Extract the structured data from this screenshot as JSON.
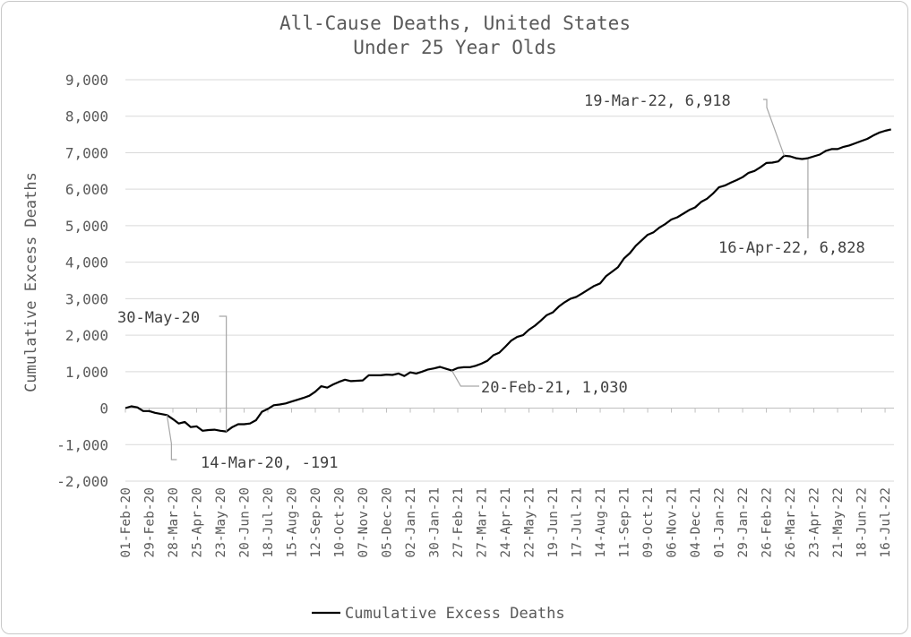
{
  "chart_data": {
    "type": "line",
    "title": "All-Cause Deaths, United States",
    "subtitle": "Under 25 Year Olds",
    "ylabel": "Cumulative Excess Deaths",
    "xlabel": "",
    "ylim": [
      -2000,
      9000
    ],
    "yticks": [
      9000,
      8000,
      7000,
      6000,
      5000,
      4000,
      3000,
      2000,
      1000,
      0,
      -1000,
      -2000
    ],
    "ytick_labels": [
      "9,000",
      "8,000",
      "7,000",
      "6,000",
      "5,000",
      "4,000",
      "3,000",
      "2,000",
      "1,000",
      "0",
      "-1,000",
      "-2,000"
    ],
    "xtick_labels": [
      "01-Feb-20",
      "29-Feb-20",
      "28-Mar-20",
      "25-Apr-20",
      "23-May-20",
      "20-Jun-20",
      "18-Jul-20",
      "15-Aug-20",
      "12-Sep-20",
      "10-Oct-20",
      "07-Nov-20",
      "05-Dec-20",
      "02-Jan-21",
      "30-Jan-21",
      "27-Feb-21",
      "27-Mar-21",
      "24-Apr-21",
      "22-May-21",
      "19-Jun-21",
      "17-Jul-21",
      "14-Aug-21",
      "11-Sep-21",
      "09-Oct-21",
      "06-Nov-21",
      "04-Dec-21",
      "01-Jan-22",
      "29-Jan-22",
      "26-Feb-22",
      "26-Mar-22",
      "23-Apr-22",
      "21-May-22",
      "18-Jun-22",
      "16-Jul-22"
    ],
    "grid": true,
    "legend_position": "bottom",
    "series": [
      {
        "name": "Cumulative Excess Deaths",
        "color": "#000000",
        "values": [
          0,
          50,
          20,
          -80,
          -80,
          -130,
          -160,
          -191,
          -300,
          -420,
          -380,
          -520,
          -500,
          -620,
          -600,
          -590,
          -620,
          -640,
          -520,
          -440,
          -440,
          -420,
          -330,
          -100,
          -20,
          80,
          100,
          130,
          180,
          230,
          280,
          340,
          450,
          600,
          560,
          650,
          720,
          780,
          740,
          750,
          760,
          900,
          900,
          900,
          920,
          910,
          950,
          880,
          980,
          950,
          1000,
          1060,
          1090,
          1130,
          1080,
          1030,
          1100,
          1120,
          1120,
          1160,
          1220,
          1300,
          1450,
          1520,
          1680,
          1850,
          1950,
          2000,
          2150,
          2260,
          2400,
          2550,
          2620,
          2780,
          2900,
          3000,
          3050,
          3150,
          3250,
          3350,
          3420,
          3620,
          3740,
          3860,
          4100,
          4250,
          4450,
          4600,
          4750,
          4820,
          4950,
          5050,
          5170,
          5230,
          5330,
          5430,
          5500,
          5650,
          5740,
          5880,
          6050,
          6100,
          6180,
          6250,
          6330,
          6450,
          6500,
          6600,
          6720,
          6730,
          6760,
          6918,
          6900,
          6850,
          6828,
          6850,
          6900,
          6950,
          7050,
          7100,
          7100,
          7160,
          7200,
          7260,
          7320,
          7380,
          7470,
          7550,
          7600,
          7640
        ]
      }
    ],
    "annotations": [
      {
        "label": "14-Mar-20, -191",
        "x_index": 7,
        "y": -191
      },
      {
        "label": "30-May-20",
        "x_index": 17,
        "y": -640
      },
      {
        "label": "20-Feb-21, 1,030",
        "x_index": 55,
        "y": 1030
      },
      {
        "label": "19-Mar-22, 6,918",
        "x_index": 111,
        "y": 6918
      },
      {
        "label": "16-Apr-22, 6,828",
        "x_index": 115,
        "y": 6828
      }
    ]
  }
}
